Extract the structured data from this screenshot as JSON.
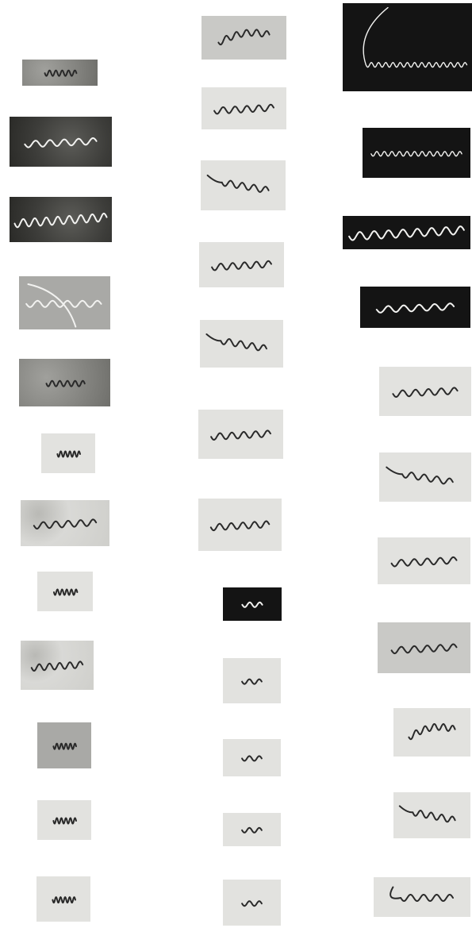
{
  "plate": {
    "columns": [
      {
        "column": "left",
        "panels": [
          {
            "id": "L1",
            "tone": "tone-mottle",
            "organism": "dark",
            "form": "tight"
          },
          {
            "id": "L2",
            "tone": "tone-darkmottle",
            "organism": "light",
            "form": "loose"
          },
          {
            "id": "L3",
            "tone": "tone-darkmottle",
            "organism": "light",
            "form": "long"
          },
          {
            "id": "L4",
            "tone": "tone-grey",
            "organism": "light",
            "form": "branched"
          },
          {
            "id": "L5",
            "tone": "tone-mottle",
            "organism": "dark",
            "form": "tight"
          },
          {
            "id": "L6",
            "tone": "tone-light",
            "organism": "dark",
            "form": "tight"
          },
          {
            "id": "L7",
            "tone": "tone-speck",
            "organism": "dark",
            "form": "loose"
          },
          {
            "id": "L8",
            "tone": "tone-light",
            "organism": "dark",
            "form": "tight"
          },
          {
            "id": "L9",
            "tone": "tone-speck",
            "organism": "dark",
            "form": "loose"
          },
          {
            "id": "L10",
            "tone": "tone-grey",
            "organism": "dark",
            "form": "tight"
          },
          {
            "id": "L11",
            "tone": "tone-light",
            "organism": "dark",
            "form": "tight"
          },
          {
            "id": "L12",
            "tone": "tone-light",
            "organism": "dark",
            "form": "tight"
          }
        ]
      },
      {
        "column": "middle",
        "panels": [
          {
            "id": "M1",
            "tone": "tone-mid",
            "organism": "dark",
            "form": "arc"
          },
          {
            "id": "M2",
            "tone": "tone-light",
            "organism": "dark",
            "form": "loose"
          },
          {
            "id": "M3",
            "tone": "tone-light",
            "organism": "dark",
            "form": "hook"
          },
          {
            "id": "M4",
            "tone": "tone-light",
            "organism": "dark",
            "form": "loose"
          },
          {
            "id": "M5",
            "tone": "tone-light",
            "organism": "dark",
            "form": "hook"
          },
          {
            "id": "M6",
            "tone": "tone-light",
            "organism": "dark",
            "form": "loose"
          },
          {
            "id": "M7",
            "tone": "tone-light",
            "organism": "dark",
            "form": "loose"
          },
          {
            "id": "M8",
            "tone": "tone-dark",
            "organism": "light",
            "form": "short"
          },
          {
            "id": "M9",
            "tone": "tone-light",
            "organism": "dark",
            "form": "short"
          },
          {
            "id": "M10",
            "tone": "tone-light",
            "organism": "dark",
            "form": "short"
          },
          {
            "id": "M11",
            "tone": "tone-light",
            "organism": "dark",
            "form": "short"
          },
          {
            "id": "M12",
            "tone": "tone-light",
            "organism": "dark",
            "form": "short"
          }
        ]
      },
      {
        "column": "right",
        "panels": [
          {
            "id": "R1",
            "tone": "tone-dark",
            "organism": "light",
            "form": "coil"
          },
          {
            "id": "R2",
            "tone": "tone-dark",
            "organism": "light",
            "form": "fine"
          },
          {
            "id": "R3",
            "tone": "tone-dark",
            "organism": "light",
            "form": "long"
          },
          {
            "id": "R4",
            "tone": "tone-dark",
            "organism": "light",
            "form": "loose"
          },
          {
            "id": "R5",
            "tone": "tone-light",
            "organism": "dark",
            "form": "loose"
          },
          {
            "id": "R6",
            "tone": "tone-light",
            "organism": "dark",
            "form": "hook"
          },
          {
            "id": "R7",
            "tone": "tone-light",
            "organism": "dark",
            "form": "loose"
          },
          {
            "id": "R8",
            "tone": "tone-mid",
            "organism": "dark",
            "form": "loose"
          },
          {
            "id": "R9",
            "tone": "tone-light",
            "organism": "dark",
            "form": "arc"
          },
          {
            "id": "R10",
            "tone": "tone-light",
            "organism": "dark",
            "form": "hook"
          },
          {
            "id": "R11",
            "tone": "tone-light",
            "organism": "dark",
            "form": "curl"
          }
        ]
      }
    ]
  }
}
